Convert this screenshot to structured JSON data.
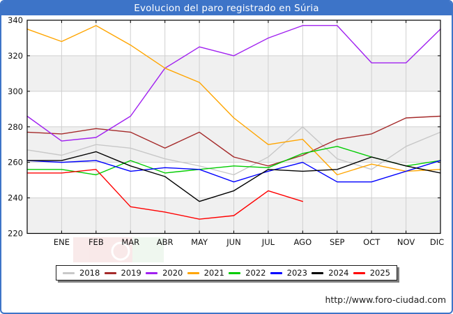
{
  "title": "Evolucion del paro registrado en Súria",
  "footer": {
    "url": "http://www.foro-ciudad.com"
  },
  "chart_data": {
    "type": "line",
    "title": "Evolucion del paro registrado en Súria",
    "categories": [
      "ENE",
      "FEB",
      "MAR",
      "ABR",
      "MAY",
      "JUN",
      "JUL",
      "AGO",
      "SEP",
      "OCT",
      "NOV",
      "DIC"
    ],
    "ylabel": "",
    "xlabel": "",
    "ylim": [
      220,
      340
    ],
    "ytick_step": 20,
    "grid": true,
    "band_fill": "#f0f0f0",
    "grid_color": "#d0d0d0",
    "legend_position": "bottom",
    "series": [
      {
        "name": "2018",
        "color": "#c8c8c8",
        "start": 267,
        "values": [
          264,
          270,
          268,
          262,
          258,
          253,
          263,
          280,
          262,
          256,
          269,
          277
        ]
      },
      {
        "name": "2019",
        "color": "#a52a2a",
        "start": 277,
        "values": [
          276,
          279,
          277,
          268,
          277,
          263,
          258,
          264,
          273,
          276,
          285,
          286
        ]
      },
      {
        "name": "2020",
        "color": "#a020f0",
        "start": 286,
        "values": [
          272,
          274,
          286,
          313,
          325,
          320,
          330,
          337,
          337,
          316,
          316,
          335
        ]
      },
      {
        "name": "2021",
        "color": "#ffa500",
        "start": 335,
        "values": [
          328,
          337,
          326,
          313,
          305,
          285,
          270,
          273,
          253,
          259,
          255,
          256
        ]
      },
      {
        "name": "2022",
        "color": "#00cc00",
        "start": 256,
        "values": [
          256,
          253,
          261,
          254,
          256,
          258,
          257,
          265,
          269,
          263,
          258,
          261
        ]
      },
      {
        "name": "2023",
        "color": "#0000ff",
        "start": 261,
        "values": [
          260,
          261,
          255,
          257,
          256,
          249,
          255,
          260,
          249,
          249,
          255,
          261
        ]
      },
      {
        "name": "2024",
        "color": "#000000",
        "start": 261,
        "values": [
          261,
          266,
          258,
          252,
          238,
          244,
          256,
          255,
          256,
          263,
          258,
          254
        ]
      },
      {
        "name": "2025",
        "color": "#ff0000",
        "start": 254,
        "values": [
          254,
          256,
          235,
          232,
          228,
          230,
          244,
          238
        ]
      }
    ]
  }
}
